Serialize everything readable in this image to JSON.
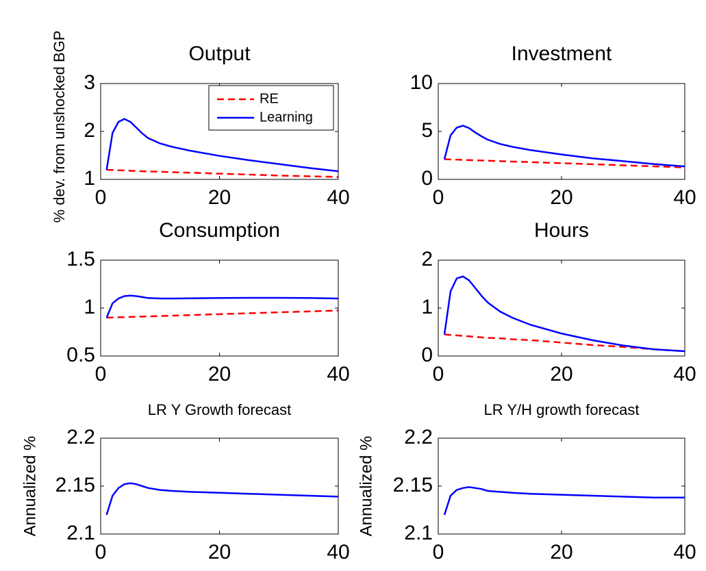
{
  "chart_data": [
    {
      "type": "line",
      "title": "Output",
      "ylabel": "% dev. from unshocked BGP",
      "x": [
        1,
        2,
        3,
        4,
        5,
        6,
        7,
        8,
        10,
        12,
        15,
        20,
        25,
        30,
        35,
        40
      ],
      "series": [
        {
          "name": "RE",
          "color": "#ff0000",
          "dashed": true,
          "values": [
            1.2,
            1.195,
            1.19,
            1.185,
            1.18,
            1.175,
            1.17,
            1.165,
            1.16,
            1.15,
            1.14,
            1.12,
            1.1,
            1.08,
            1.065,
            1.05
          ]
        },
        {
          "name": "Learning",
          "color": "#0000ff",
          "values": [
            1.2,
            1.97,
            2.2,
            2.26,
            2.2,
            2.08,
            1.96,
            1.86,
            1.75,
            1.68,
            1.6,
            1.49,
            1.4,
            1.32,
            1.24,
            1.17
          ]
        }
      ],
      "xlim": [
        0,
        40
      ],
      "xticks": [
        0,
        20,
        40
      ],
      "ylim": [
        1,
        3
      ],
      "yticks": [
        1,
        2,
        3
      ],
      "legend": "upper right"
    },
    {
      "type": "line",
      "title": "Investment",
      "x": [
        1,
        2,
        3,
        4,
        5,
        6,
        7,
        8,
        10,
        12,
        15,
        20,
        25,
        30,
        35,
        40
      ],
      "series": [
        {
          "color": "#ff0000",
          "dashed": true,
          "values": [
            2.1,
            2.08,
            2.06,
            2.03,
            2.01,
            1.99,
            1.97,
            1.95,
            1.9,
            1.86,
            1.8,
            1.69,
            1.58,
            1.47,
            1.36,
            1.25
          ]
        },
        {
          "color": "#0000ff",
          "values": [
            2.1,
            4.6,
            5.4,
            5.6,
            5.35,
            4.9,
            4.5,
            4.15,
            3.7,
            3.4,
            3.05,
            2.6,
            2.2,
            1.9,
            1.6,
            1.35
          ]
        }
      ],
      "xlim": [
        0,
        40
      ],
      "xticks": [
        0,
        20,
        40
      ],
      "ylim": [
        0,
        10
      ],
      "yticks": [
        0,
        5,
        10
      ]
    },
    {
      "type": "line",
      "title": "Consumption",
      "x": [
        1,
        2,
        3,
        4,
        5,
        6,
        7,
        8,
        10,
        12,
        15,
        20,
        25,
        30,
        35,
        40
      ],
      "series": [
        {
          "color": "#ff0000",
          "dashed": true,
          "values": [
            0.9,
            0.902,
            0.904,
            0.906,
            0.908,
            0.91,
            0.912,
            0.913,
            0.917,
            0.921,
            0.927,
            0.937,
            0.946,
            0.956,
            0.965,
            0.975
          ]
        },
        {
          "color": "#0000ff",
          "values": [
            0.9,
            1.05,
            1.1,
            1.125,
            1.13,
            1.125,
            1.115,
            1.105,
            1.1,
            1.1,
            1.102,
            1.105,
            1.107,
            1.107,
            1.105,
            1.1
          ]
        }
      ],
      "xlim": [
        0,
        40
      ],
      "xticks": [
        0,
        20,
        40
      ],
      "ylim": [
        0.5,
        1.5
      ],
      "yticks": [
        0.5,
        1,
        1.5
      ]
    },
    {
      "type": "line",
      "title": "Hours",
      "x": [
        1,
        2,
        3,
        4,
        5,
        6,
        7,
        8,
        10,
        12,
        15,
        20,
        25,
        30,
        35,
        40
      ],
      "series": [
        {
          "color": "#ff0000",
          "dashed": true,
          "values": [
            0.45,
            0.44,
            0.43,
            0.42,
            0.41,
            0.4,
            0.39,
            0.38,
            0.37,
            0.35,
            0.33,
            0.28,
            0.23,
            0.19,
            0.14,
            0.1
          ]
        },
        {
          "color": "#0000ff",
          "values": [
            0.45,
            1.35,
            1.62,
            1.66,
            1.58,
            1.42,
            1.26,
            1.12,
            0.93,
            0.8,
            0.65,
            0.47,
            0.33,
            0.22,
            0.14,
            0.1
          ]
        }
      ],
      "xlim": [
        0,
        40
      ],
      "xticks": [
        0,
        20,
        40
      ],
      "ylim": [
        0,
        2
      ],
      "yticks": [
        0,
        1,
        2
      ]
    },
    {
      "type": "line",
      "title": "LR Y Growth forecast",
      "ylabel": "Annualized %",
      "x": [
        1,
        2,
        3,
        4,
        5,
        6,
        7,
        8,
        10,
        12,
        15,
        20,
        25,
        30,
        35,
        40
      ],
      "series": [
        {
          "color": "#0000ff",
          "values": [
            2.12,
            2.14,
            2.148,
            2.152,
            2.153,
            2.152,
            2.15,
            2.148,
            2.146,
            2.145,
            2.144,
            2.143,
            2.142,
            2.141,
            2.14,
            2.139
          ]
        }
      ],
      "xlim": [
        0,
        40
      ],
      "xticks": [
        0,
        20,
        40
      ],
      "ylim": [
        2.1,
        2.2
      ],
      "yticks": [
        2.1,
        2.15,
        2.2
      ]
    },
    {
      "type": "line",
      "title": "LR Y/H growth forecast",
      "ylabel": "Annualized %",
      "x": [
        1,
        2,
        3,
        4,
        5,
        6,
        7,
        8,
        10,
        12,
        15,
        20,
        25,
        30,
        35,
        40
      ],
      "series": [
        {
          "color": "#0000ff",
          "values": [
            2.12,
            2.14,
            2.146,
            2.148,
            2.149,
            2.148,
            2.147,
            2.145,
            2.144,
            2.143,
            2.142,
            2.141,
            2.14,
            2.139,
            2.138,
            2.138
          ]
        }
      ],
      "xlim": [
        0,
        40
      ],
      "xticks": [
        0,
        20,
        40
      ],
      "ylim": [
        2.1,
        2.2
      ],
      "yticks": [
        2.1,
        2.15,
        2.2
      ]
    }
  ]
}
